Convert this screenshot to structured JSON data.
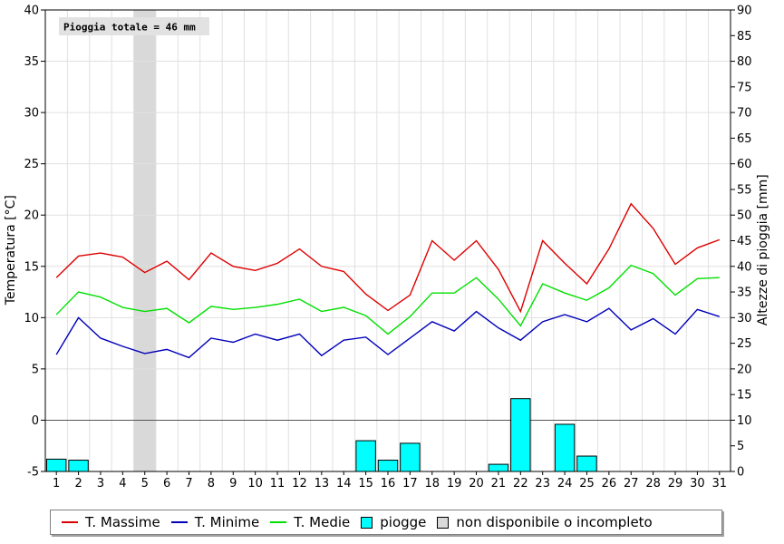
{
  "chart_data": {
    "type": "line+bar",
    "annotation": "Pioggia totale = 46 mm",
    "ylabel_left": "Temperatura [°C]",
    "ylabel_right": "Altezze di pioggia [mm]",
    "ylim_left": [
      -5,
      40
    ],
    "ylim_right": [
      0,
      90
    ],
    "yticks_left": [
      -5,
      0,
      5,
      10,
      15,
      20,
      25,
      30,
      35,
      40
    ],
    "yticks_right": [
      0,
      5,
      10,
      15,
      20,
      25,
      30,
      35,
      40,
      45,
      50,
      55,
      60,
      65,
      70,
      75,
      80,
      85,
      90
    ],
    "x": [
      1,
      2,
      3,
      4,
      5,
      6,
      7,
      8,
      9,
      10,
      11,
      12,
      13,
      14,
      15,
      16,
      17,
      18,
      19,
      20,
      21,
      22,
      23,
      24,
      25,
      26,
      27,
      28,
      29,
      30,
      31
    ],
    "grid": true,
    "unavailable_days": [
      5
    ],
    "series": [
      {
        "name": "T. Massime",
        "color": "#dd0000",
        "values": [
          13.9,
          16.0,
          16.3,
          15.9,
          14.4,
          15.5,
          13.7,
          16.3,
          15.0,
          14.6,
          15.3,
          16.7,
          15.0,
          14.5,
          12.3,
          10.7,
          12.2,
          17.5,
          15.6,
          17.5,
          14.7,
          10.6,
          17.5,
          15.3,
          13.3,
          16.7,
          21.1,
          18.7,
          15.2,
          16.8,
          17.6
        ]
      },
      {
        "name": "T. Minime",
        "color": "#0000bb",
        "values": [
          6.4,
          10.0,
          8.0,
          7.2,
          6.5,
          6.9,
          6.1,
          8.0,
          7.6,
          8.4,
          7.8,
          8.4,
          6.3,
          7.8,
          8.1,
          6.4,
          8.0,
          9.6,
          8.7,
          10.6,
          9.0,
          7.8,
          9.6,
          10.3,
          9.6,
          10.9,
          8.8,
          9.9,
          8.4,
          10.8,
          10.1
        ]
      },
      {
        "name": "T. Medie",
        "color": "#00e000",
        "values": [
          10.3,
          12.5,
          12.0,
          11.0,
          10.6,
          10.9,
          9.5,
          11.1,
          10.8,
          11.0,
          11.3,
          11.8,
          10.6,
          11.0,
          10.2,
          8.4,
          10.1,
          12.4,
          12.4,
          13.9,
          11.8,
          9.2,
          13.3,
          12.4,
          11.7,
          12.9,
          15.1,
          14.3,
          12.2,
          13.8,
          13.9
        ]
      },
      {
        "name": "piogge",
        "color": "#00ffff",
        "type": "bar",
        "values": [
          2.4,
          2.2,
          0,
          0,
          0,
          0,
          0,
          0,
          0,
          0,
          0,
          0,
          0,
          0,
          6.0,
          2.2,
          5.5,
          0,
          0,
          0,
          1.4,
          14.2,
          0,
          9.2,
          3.0,
          0,
          0,
          0,
          0,
          0,
          0
        ]
      }
    ],
    "legend": {
      "placement": "bottom",
      "items": [
        {
          "label": "T. Massime",
          "kind": "line",
          "color": "#dd0000"
        },
        {
          "label": "T. Minime",
          "kind": "line",
          "color": "#0000bb"
        },
        {
          "label": "T. Medie",
          "kind": "line",
          "color": "#00e000"
        },
        {
          "label": "piogge",
          "kind": "box",
          "color": "#00ffff"
        },
        {
          "label": "non disponibile o incompleto",
          "kind": "box",
          "color": "#d9d9d9"
        }
      ]
    }
  }
}
